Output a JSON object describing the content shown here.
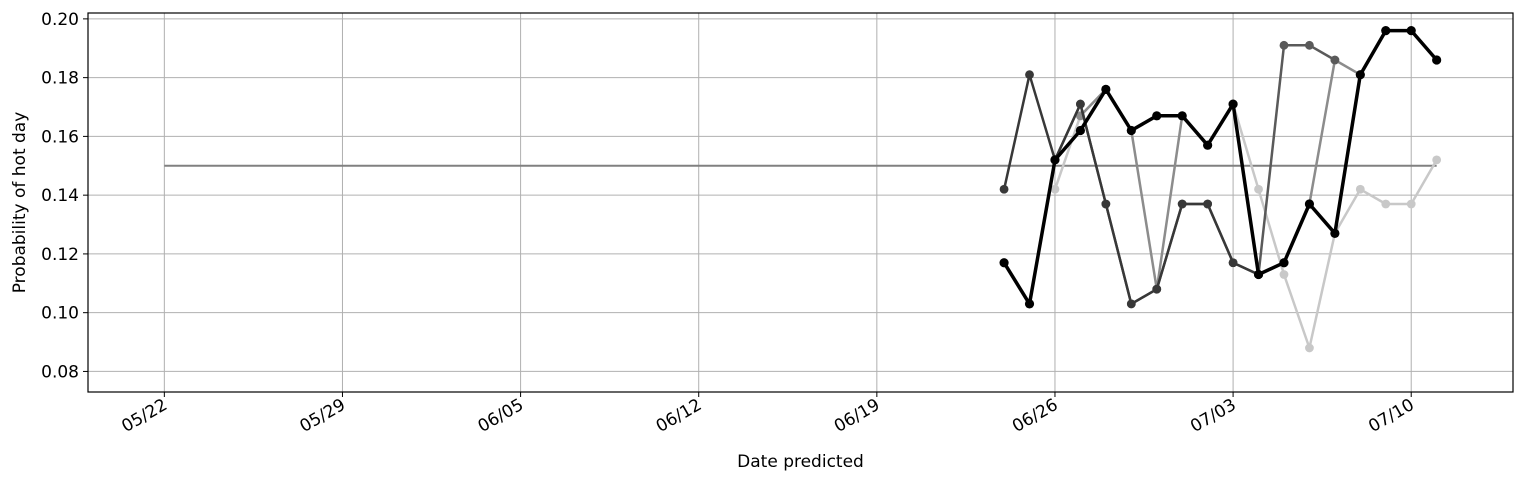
{
  "chart_data": {
    "type": "line",
    "xlabel": "Date predicted",
    "ylabel": "Probability of hot day",
    "x_axis": {
      "type": "date",
      "year": 2019,
      "range": [
        "2019-05-19",
        "2019-07-14"
      ],
      "ticks": [
        "2019-05-22",
        "2019-05-29",
        "2019-06-05",
        "2019-06-12",
        "2019-06-19",
        "2019-06-26",
        "2019-07-03",
        "2019-07-10"
      ],
      "tick_labels": [
        "05/22",
        "05/29",
        "06/05",
        "06/12",
        "06/19",
        "06/26",
        "07/03",
        "07/10"
      ]
    },
    "y_axis": {
      "ylim": [
        0.073,
        0.202
      ],
      "ticks": [
        0.08,
        0.1,
        0.12,
        0.14,
        0.16,
        0.18,
        0.2
      ],
      "tick_labels": [
        "0.08",
        "0.10",
        "0.12",
        "0.14",
        "0.16",
        "0.18",
        "0.20"
      ]
    },
    "grid": true,
    "legend": "none",
    "baseline": {
      "x": [
        "2019-05-22",
        "2019-07-11"
      ],
      "y": [
        0.15,
        0.15
      ],
      "color": "#808080"
    },
    "series": [
      {
        "color": "#c8c8c8",
        "x": [
          "2019-06-26",
          "2019-06-27",
          "2019-06-28",
          "2019-06-29",
          "2019-06-30",
          "2019-07-01",
          "2019-07-02",
          "2019-07-03",
          "2019-07-04",
          "2019-07-05",
          "2019-07-06",
          "2019-07-07",
          "2019-07-08",
          "2019-07-09",
          "2019-07-10",
          "2019-07-11"
        ],
        "y": [
          0.142,
          0.167,
          0.176,
          0.162,
          0.167,
          0.167,
          0.157,
          0.171,
          0.142,
          0.113,
          0.088,
          0.127,
          0.142,
          0.137,
          0.137,
          0.152
        ]
      },
      {
        "color": "#8c8c8c",
        "x": [
          "2019-06-27",
          "2019-06-28",
          "2019-06-29",
          "2019-06-30",
          "2019-07-01",
          "2019-07-02",
          "2019-07-03",
          "2019-07-04",
          "2019-07-05",
          "2019-07-06",
          "2019-07-07",
          "2019-07-08",
          "2019-07-09",
          "2019-07-10",
          "2019-07-11"
        ],
        "y": [
          0.167,
          0.176,
          0.162,
          0.108,
          0.167,
          0.157,
          0.171,
          0.113,
          0.117,
          0.137,
          0.186,
          0.181,
          0.196,
          0.196,
          0.186
        ]
      },
      {
        "color": "#5a5a5a",
        "x": [
          "2019-06-26",
          "2019-06-27",
          "2019-06-28",
          "2019-06-29",
          "2019-06-30",
          "2019-07-01",
          "2019-07-02",
          "2019-07-03",
          "2019-07-04",
          "2019-07-05",
          "2019-07-06",
          "2019-07-07"
        ],
        "y": [
          0.152,
          0.171,
          0.137,
          0.103,
          0.108,
          0.137,
          0.137,
          0.117,
          0.113,
          0.191,
          0.191,
          0.186
        ]
      },
      {
        "color": "#383838",
        "x": [
          "2019-06-24",
          "2019-06-25",
          "2019-06-26",
          "2019-06-27",
          "2019-06-28",
          "2019-06-29",
          "2019-06-30",
          "2019-07-01",
          "2019-07-02",
          "2019-07-03",
          "2019-07-04"
        ],
        "y": [
          0.142,
          0.181,
          0.152,
          0.171,
          0.137,
          0.103,
          0.108,
          0.137,
          0.137,
          0.117,
          0.113
        ]
      },
      {
        "color": "#000000",
        "x": [
          "2019-06-24",
          "2019-06-25",
          "2019-06-26",
          "2019-06-27",
          "2019-06-28",
          "2019-06-29",
          "2019-06-30",
          "2019-07-01",
          "2019-07-02",
          "2019-07-03",
          "2019-07-04",
          "2019-07-05",
          "2019-07-06",
          "2019-07-07",
          "2019-07-08",
          "2019-07-09",
          "2019-07-10",
          "2019-07-11"
        ],
        "y": [
          0.117,
          0.103,
          0.152,
          0.162,
          0.176,
          0.162,
          0.167,
          0.167,
          0.157,
          0.171,
          0.113,
          0.117,
          0.137,
          0.127,
          0.181,
          0.196,
          0.196,
          0.186
        ],
        "emphasized": true
      }
    ]
  }
}
